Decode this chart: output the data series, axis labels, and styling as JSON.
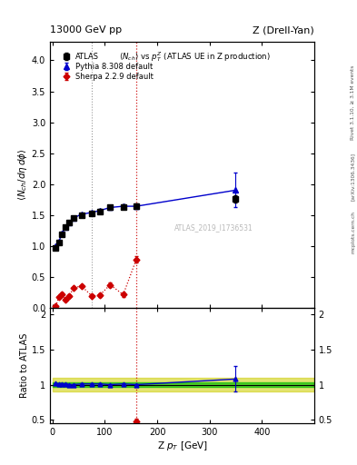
{
  "title_left": "13000 GeV pp",
  "title_right": "Z (Drell-Yan)",
  "main_title": "$\\langle N_{ch}\\rangle$ vs $p_T^Z$ (ATLAS UE in Z production)",
  "ylabel_main": "$\\langle N_{ch}/d\\eta\\, d\\phi\\rangle$",
  "ylabel_ratio": "Ratio to ATLAS",
  "xlabel": "Z $p_T$ [GeV]",
  "rivet_label": "Rivet 3.1.10, ≥ 3.1M events",
  "arxiv_label": "[arXiv:1306.3436]",
  "mcplots_label": "mcplots.cern.ch",
  "watermark": "ATLAS_2019_I1736531",
  "atlas_x": [
    6,
    12,
    18,
    25,
    32,
    40,
    55,
    75,
    90,
    110,
    135,
    160,
    350
  ],
  "atlas_y": [
    0.97,
    1.06,
    1.19,
    1.3,
    1.38,
    1.45,
    1.5,
    1.53,
    1.56,
    1.62,
    1.63,
    1.64,
    1.76
  ],
  "atlas_yerr": [
    0.03,
    0.03,
    0.03,
    0.03,
    0.03,
    0.03,
    0.03,
    0.03,
    0.03,
    0.04,
    0.04,
    0.04,
    0.06
  ],
  "pythia_x": [
    6,
    12,
    18,
    25,
    32,
    40,
    55,
    75,
    90,
    110,
    135,
    160,
    350
  ],
  "pythia_y": [
    0.99,
    1.07,
    1.2,
    1.31,
    1.38,
    1.45,
    1.51,
    1.54,
    1.57,
    1.62,
    1.64,
    1.64,
    1.9
  ],
  "pythia_yerr": [
    0.005,
    0.005,
    0.005,
    0.005,
    0.005,
    0.005,
    0.005,
    0.005,
    0.005,
    0.005,
    0.005,
    0.005,
    0.28
  ],
  "sherpa_x": [
    6,
    12,
    18,
    25,
    32,
    40,
    55,
    75,
    90,
    110,
    135,
    160
  ],
  "sherpa_y": [
    0.02,
    0.17,
    0.22,
    0.13,
    0.19,
    0.32,
    0.35,
    0.19,
    0.2,
    0.37,
    0.21,
    0.78
  ],
  "sherpa_yerr": [
    0.01,
    0.02,
    0.02,
    0.02,
    0.02,
    0.02,
    0.02,
    0.02,
    0.03,
    0.04,
    0.04,
    0.05
  ],
  "ratio_pythia_x": [
    6,
    12,
    18,
    25,
    32,
    40,
    55,
    75,
    90,
    110,
    135,
    160,
    350
  ],
  "ratio_pythia_y": [
    1.02,
    1.01,
    1.01,
    1.01,
    1.0,
    1.0,
    1.01,
    1.01,
    1.01,
    1.0,
    1.01,
    1.0,
    1.08
  ],
  "ratio_pythia_yerr": [
    0.005,
    0.005,
    0.005,
    0.005,
    0.005,
    0.005,
    0.005,
    0.005,
    0.005,
    0.005,
    0.005,
    0.005,
    0.18
  ],
  "ratio_sherpa_x": [
    160
  ],
  "ratio_sherpa_y": [
    0.47
  ],
  "ratio_sherpa_yerr": [
    0.04
  ],
  "band_green_xmin": 0,
  "band_green_xmax": 500,
  "band_green_ylow": 0.97,
  "band_green_yhigh": 1.03,
  "band_yellow_xmin": 0,
  "band_yellow_xmax": 500,
  "band_yellow_ylow": 0.9,
  "band_yellow_yhigh": 1.1,
  "vline1_x": 75,
  "vline2_x": 160,
  "ylim_main": [
    0,
    4.3
  ],
  "ylim_ratio": [
    0.45,
    2.1
  ],
  "xlim": [
    -5,
    500
  ],
  "color_atlas": "#000000",
  "color_pythia": "#0000cc",
  "color_sherpa": "#cc0000",
  "color_band_green": "#00bb00",
  "color_band_yellow": "#cccc00"
}
